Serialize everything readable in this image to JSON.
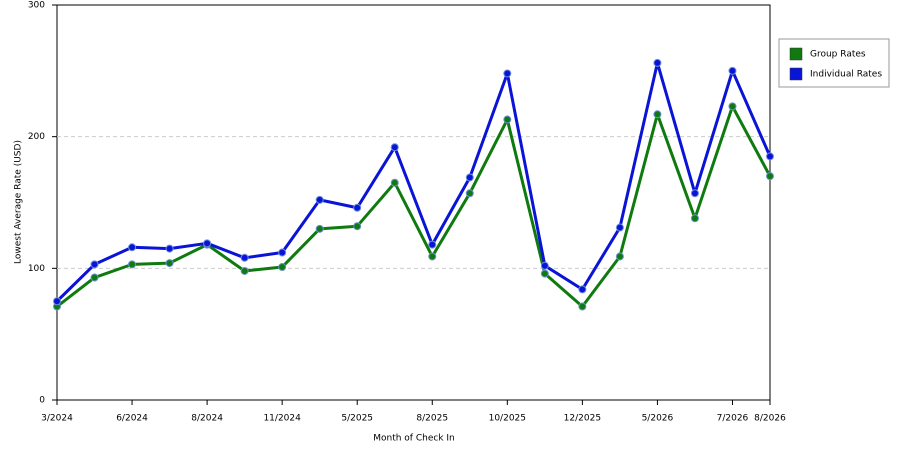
{
  "chart_data": {
    "type": "line",
    "x_label": "Month of Check In",
    "y_label": "Lowest Average Rate (USD)",
    "categories": [
      "3/2024",
      null,
      "6/2024",
      null,
      "8/2024",
      null,
      "11/2024",
      null,
      "5/2025",
      null,
      "8/2025",
      null,
      "10/2025",
      null,
      "12/2025",
      null,
      "5/2026",
      null,
      "7/2026",
      "8/2026"
    ],
    "series": [
      {
        "name": "Group Rates",
        "color": "#0f7a0f",
        "values": [
          71,
          93,
          103,
          104,
          118,
          98,
          101,
          130,
          132,
          165,
          109,
          157,
          213,
          96,
          71,
          109,
          217,
          138,
          223,
          170
        ]
      },
      {
        "name": "Individual Rates",
        "color": "#0a14d6",
        "values": [
          75,
          103,
          116,
          115,
          119,
          108,
          112,
          152,
          146,
          192,
          118,
          169,
          248,
          102,
          84,
          131,
          256,
          157,
          250,
          185
        ]
      }
    ],
    "ylim": [
      0,
      300
    ],
    "yticks": [
      0,
      100,
      200,
      300
    ],
    "grid": true,
    "legend": "right"
  }
}
